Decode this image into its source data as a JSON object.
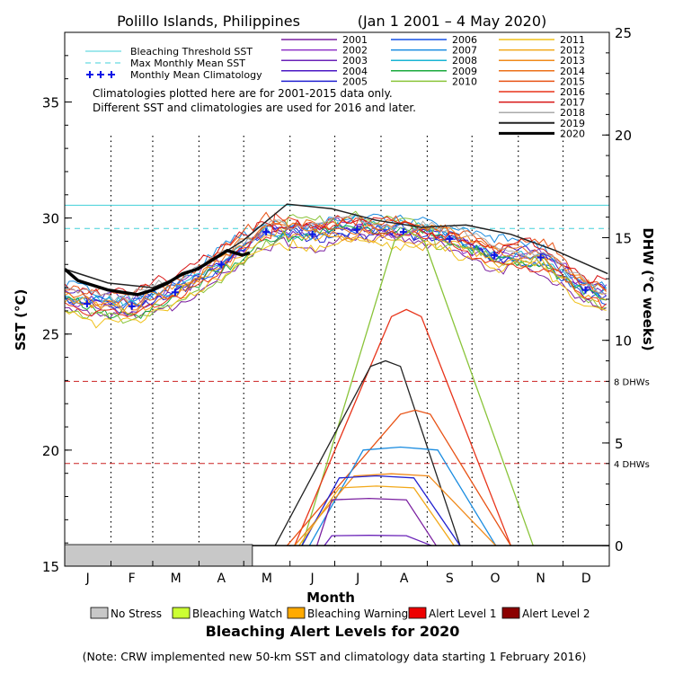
{
  "chart_data": {
    "type": "line",
    "title": "Polillo Islands, Philippines",
    "date_range": "(Jan 1 2001 – 4 May 2020)",
    "xlabel": "Month",
    "ylabel_left": "SST (°C)",
    "ylabel_right": "DHW (°C weeks)",
    "months": [
      "J",
      "F",
      "M",
      "A",
      "M",
      "J",
      "J",
      "A",
      "S",
      "O",
      "N",
      "D"
    ],
    "ylim_left": [
      15,
      38
    ],
    "yticks_left": [
      15,
      20,
      25,
      30,
      35
    ],
    "ylim_right": [
      -1,
      25
    ],
    "yticks_right": [
      0,
      5,
      10,
      15,
      20,
      25
    ],
    "grid": "dotted vertical month lines",
    "legend_lines": {
      "threshold": {
        "label": "Bleaching Threshold SST",
        "value": 30.55,
        "color": "#40d0d8"
      },
      "mmm": {
        "label": "Max Monthly Mean SST",
        "value": 29.55,
        "color": "#40d0d8"
      },
      "clim": {
        "label": "Monthly Mean Climatology",
        "color": "#0a14e6"
      }
    },
    "note_lines": [
      "Climatologies plotted here are for 2001-2015 data only.",
      "Different SST and climatologies are used for 2016 and later."
    ],
    "dhw_refs": [
      {
        "label": "8 DHWs",
        "value": 8,
        "color": "#cc2222"
      },
      {
        "label": "4 DHWs",
        "value": 4,
        "color": "#cc2222"
      }
    ],
    "climatology": [
      26.3,
      26.2,
      26.8,
      28.0,
      29.4,
      29.3,
      29.5,
      29.4,
      29.1,
      28.4,
      28.3,
      26.9
    ],
    "years": [
      {
        "name": "2001",
        "color": "#7a1fa0"
      },
      {
        "name": "2002",
        "color": "#8e30c8"
      },
      {
        "name": "2003",
        "color": "#6a22b8"
      },
      {
        "name": "2004",
        "color": "#4a18c4"
      },
      {
        "name": "2005",
        "color": "#2222d0"
      },
      {
        "name": "2006",
        "color": "#1450e6"
      },
      {
        "name": "2007",
        "color": "#1a8ce0"
      },
      {
        "name": "2008",
        "color": "#18b4d4"
      },
      {
        "name": "2009",
        "color": "#1aaa3c"
      },
      {
        "name": "2010",
        "color": "#8ac43a"
      },
      {
        "name": "2011",
        "color": "#f0c018"
      },
      {
        "name": "2012",
        "color": "#f2a818"
      },
      {
        "name": "2013",
        "color": "#f08a1a"
      },
      {
        "name": "2014",
        "color": "#ec7018"
      },
      {
        "name": "2015",
        "color": "#e85214"
      },
      {
        "name": "2016",
        "color": "#e8341a"
      },
      {
        "name": "2017",
        "color": "#d81414"
      },
      {
        "name": "2018",
        "color": "#aaaaaa"
      },
      {
        "name": "2019",
        "color": "#222222"
      },
      {
        "name": "2020",
        "color": "#000000"
      }
    ],
    "sst_2020": {
      "day": [
        1,
        10,
        20,
        30,
        40,
        50,
        60,
        70,
        80,
        90,
        100,
        110,
        120,
        125
      ],
      "value": [
        27.8,
        27.3,
        27.1,
        26.9,
        26.8,
        26.7,
        26.9,
        27.2,
        27.6,
        27.8,
        28.2,
        28.6,
        28.4,
        28.5
      ]
    },
    "sst_2019": {
      "day": [
        1,
        30,
        60,
        90,
        120,
        150,
        180,
        210,
        240,
        270,
        300,
        330,
        365
      ],
      "value": [
        27.8,
        27.2,
        27.0,
        27.8,
        29.0,
        30.6,
        30.4,
        29.9,
        29.6,
        29.7,
        29.3,
        28.6,
        27.6
      ]
    },
    "dhw_peaks": [
      {
        "year": "2010",
        "start": 160,
        "peak_day": 232,
        "end": 315,
        "peak": 15.3
      },
      {
        "year": "2016",
        "start": 155,
        "peak_day": 230,
        "end": 300,
        "peak": 11.5
      },
      {
        "year": "2019",
        "start": 142,
        "peak_day": 216,
        "end": 266,
        "peak": 9.0
      },
      {
        "year": "2015",
        "start": 150,
        "peak_day": 236,
        "end": 300,
        "peak": 6.6
      },
      {
        "year": "2007",
        "start": 165,
        "peak_day": 226,
        "end": 290,
        "peak": 4.8
      },
      {
        "year": "2013",
        "start": 155,
        "peak_day": 220,
        "end": 290,
        "peak": 3.5
      },
      {
        "year": "2005",
        "start": 160,
        "peak_day": 210,
        "end": 266,
        "peak": 3.4
      },
      {
        "year": "2012",
        "start": 158,
        "peak_day": 210,
        "end": 262,
        "peak": 2.9
      },
      {
        "year": "2001",
        "start": 170,
        "peak_day": 205,
        "end": 250,
        "peak": 2.3
      },
      {
        "year": "2003",
        "start": 175,
        "peak_day": 205,
        "end": 247,
        "peak": 0.5
      }
    ],
    "dhw_2020": {
      "day": [
        1,
        125
      ],
      "value": [
        0,
        0
      ]
    },
    "status_band_2020": {
      "label": "No Stress",
      "from_day": 1,
      "to_day": 125
    }
  },
  "alert_levels": {
    "title": "Bleaching Alert Levels for 2020",
    "items": [
      {
        "label": "No Stress",
        "color": "#c8c8c8"
      },
      {
        "label": "Bleaching Watch",
        "color": "#ccff33"
      },
      {
        "label": "Bleaching Warning",
        "color": "#ffaa00"
      },
      {
        "label": "Alert Level 1",
        "color": "#ee0000"
      },
      {
        "label": "Alert Level 2",
        "color": "#8b0000"
      }
    ]
  },
  "footnote": "(Note: CRW implemented new 50-km SST and climatology data starting 1 February 2016)"
}
